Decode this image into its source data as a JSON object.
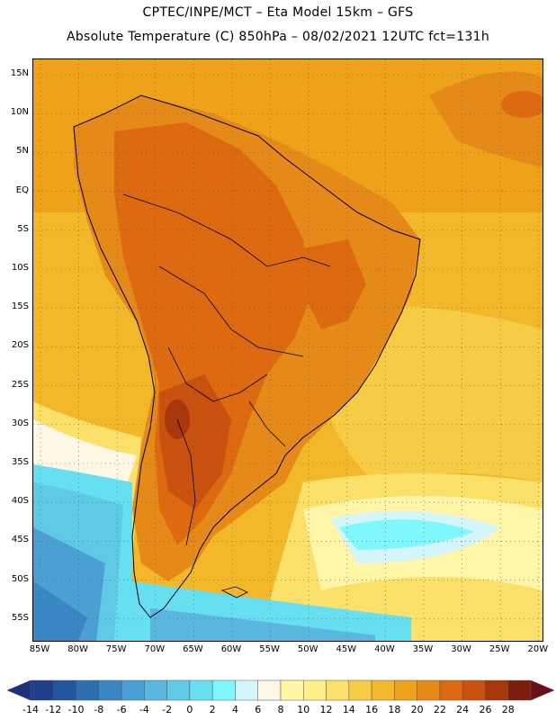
{
  "header": {
    "line1": "CPTEC/INPE/MCT –  Eta Model 15km – GFS",
    "line2": "Absolute Temperature (C) 850hPa – 08/02/2021 12UTC fct=131h"
  },
  "map": {
    "latitude_labels": [
      "15N",
      "10N",
      "5N",
      "EQ",
      "5S",
      "10S",
      "15S",
      "20S",
      "25S",
      "30S",
      "35S",
      "40S",
      "45S",
      "50S",
      "55S"
    ],
    "longitude_labels": [
      "85W",
      "80W",
      "75W",
      "70W",
      "65W",
      "60W",
      "55W",
      "50W",
      "45W",
      "40W",
      "35W",
      "30W",
      "25W",
      "20W"
    ],
    "region": "South America"
  },
  "colorbar": {
    "labels": [
      "-14",
      "-12",
      "-10",
      "-8",
      "-6",
      "-4",
      "-2",
      "0",
      "2",
      "4",
      "6",
      "8",
      "10",
      "12",
      "14",
      "16",
      "18",
      "20",
      "22",
      "24",
      "26",
      "28"
    ],
    "colors": [
      "#1f3f8a",
      "#2456a0",
      "#2d6fb3",
      "#3b86c4",
      "#4aa0d3",
      "#5ab7df",
      "#5fcae6",
      "#66dff0",
      "#7ef8fc",
      "#d4f6fb",
      "#fff7e6",
      "#fff6a8",
      "#ffef8a",
      "#fbe06a",
      "#f7cc45",
      "#f2b82a",
      "#eda21a",
      "#e58a18",
      "#dd6a10",
      "#c9520e",
      "#a8380c",
      "#7d1e0c"
    ]
  }
}
